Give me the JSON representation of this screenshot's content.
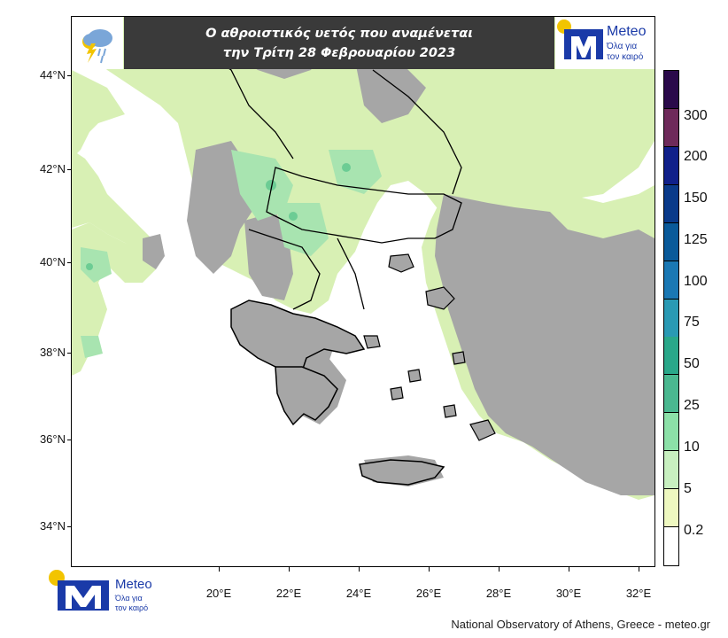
{
  "title": {
    "line1": "Ο αθροιστικός υετός που αναμένεται",
    "line2": "την Τρίτη 28 Φεβρουαρίου 2023"
  },
  "axes": {
    "latitude_labels": [
      "44°N",
      "42°N",
      "40°N",
      "38°N",
      "36°N",
      "34°N"
    ],
    "longitude_labels": [
      "20°E",
      "22°E",
      "24°E",
      "26°E",
      "28°E",
      "30°E",
      "32°E"
    ]
  },
  "legend": {
    "labels": [
      "300",
      "200",
      "150",
      "125",
      "100",
      "75",
      "50",
      "25",
      "10",
      "5",
      "0.2"
    ],
    "colors": [
      "#2a0a4a",
      "#6e2a5a",
      "#10208a",
      "#0a3a8a",
      "#0a5a9a",
      "#1a78b4",
      "#2a9ab4",
      "#2aa88a",
      "#4ab890",
      "#8ce0a8",
      "#c8f0c0",
      "#eef8c0",
      "#ffffff"
    ]
  },
  "map_colors": {
    "land_gray": "#a6a6a6",
    "light_green": "#d8f0b4",
    "mid_green": "#a8e4b0",
    "dark_green": "#6ccc94",
    "sea": "#ffffff",
    "border": "#000000"
  },
  "logo": {
    "brand": "Meteo",
    "tagline_line1": "Όλα για",
    "tagline_line2": "τον καιρό",
    "accent_blue": "#1a3aa8",
    "accent_yellow": "#f2c400"
  },
  "icons": {
    "weather": "rain-lightning-cloud-icon"
  },
  "footer": {
    "credit": "National Observatory of Athens, Greece - meteo.gr"
  }
}
